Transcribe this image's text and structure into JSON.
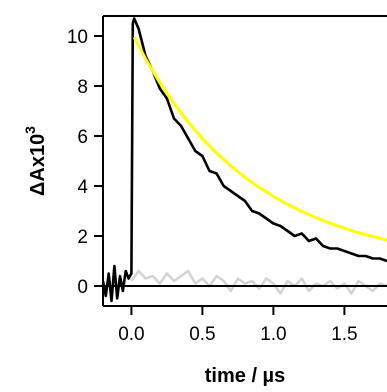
{
  "chart_data": {
    "type": "line",
    "title": "",
    "xlabel": "time / µs",
    "ylabel_main": "ΔAx10",
    "ylabel_exponent": "3",
    "xlim": [
      -0.2,
      1.8
    ],
    "ylim": [
      -0.8,
      10.8
    ],
    "x_ticks": [
      0.0,
      0.5,
      1.0,
      1.5
    ],
    "x_tick_labels": [
      "0.0",
      "0.5",
      "1.0",
      "1.5"
    ],
    "y_ticks": [
      0,
      2,
      4,
      6,
      8,
      10
    ],
    "y_tick_labels": [
      "0",
      "2",
      "4",
      "6",
      "8",
      "10"
    ],
    "grid": false,
    "legend": "none",
    "zero_line": true,
    "series": [
      {
        "role": "background-trace",
        "color": "#d3d3d3",
        "x": [
          0.0,
          0.05,
          0.1,
          0.15,
          0.2,
          0.25,
          0.3,
          0.35,
          0.4,
          0.45,
          0.5,
          0.55,
          0.6,
          0.65,
          0.7,
          0.75,
          0.8,
          0.85,
          0.9,
          0.95,
          1.0,
          1.05,
          1.1,
          1.15,
          1.2,
          1.25,
          1.3,
          1.35,
          1.4,
          1.45,
          1.5,
          1.55,
          1.6,
          1.65,
          1.7,
          1.75,
          1.8
        ],
        "y": [
          0.2,
          0.6,
          0.3,
          0.4,
          0.1,
          0.5,
          0.2,
          0.4,
          0.6,
          0.1,
          0.3,
          0.0,
          0.4,
          0.2,
          -0.2,
          0.3,
          0.1,
          0.2,
          -0.1,
          0.3,
          0.1,
          -0.3,
          0.2,
          0.0,
          0.3,
          -0.2,
          0.1,
          0.0,
          0.2,
          -0.1,
          0.1,
          -0.3,
          0.2,
          0.0,
          -0.2,
          0.1,
          0.0
        ]
      },
      {
        "role": "signal-trace",
        "color": "#000000",
        "x": [
          -0.2,
          -0.18,
          -0.16,
          -0.14,
          -0.12,
          -0.1,
          -0.08,
          -0.06,
          -0.04,
          -0.02,
          0.0,
          0.01,
          0.02,
          0.05,
          0.1,
          0.15,
          0.2,
          0.25,
          0.3,
          0.35,
          0.4,
          0.45,
          0.5,
          0.55,
          0.6,
          0.65,
          0.7,
          0.75,
          0.8,
          0.85,
          0.9,
          0.95,
          1.0,
          1.05,
          1.1,
          1.15,
          1.2,
          1.25,
          1.3,
          1.35,
          1.4,
          1.45,
          1.5,
          1.55,
          1.6,
          1.65,
          1.7,
          1.75,
          1.8
        ],
        "y": [
          0.2,
          -0.4,
          0.5,
          -0.6,
          0.8,
          -0.5,
          0.4,
          -0.2,
          0.6,
          0.3,
          0.5,
          10.5,
          10.7,
          10.3,
          9.2,
          8.6,
          7.9,
          7.5,
          6.7,
          6.4,
          5.9,
          5.4,
          5.2,
          4.6,
          4.5,
          4.0,
          3.8,
          3.6,
          3.4,
          3.0,
          2.9,
          2.7,
          2.5,
          2.4,
          2.2,
          2.0,
          2.1,
          1.8,
          1.9,
          1.6,
          1.5,
          1.5,
          1.4,
          1.3,
          1.2,
          1.2,
          1.1,
          1.1,
          1.0
        ]
      },
      {
        "role": "exponential-fit",
        "color": "#ffff00",
        "x": [
          0.02,
          0.1,
          0.2,
          0.3,
          0.4,
          0.5,
          0.6,
          0.7,
          0.8,
          0.9,
          1.0,
          1.1,
          1.2,
          1.3,
          1.4,
          1.5,
          1.6,
          1.7,
          1.8
        ],
        "y": [
          9.95,
          9.08,
          8.13,
          7.29,
          6.55,
          5.89,
          5.31,
          4.8,
          4.34,
          3.94,
          3.58,
          3.26,
          2.98,
          2.73,
          2.51,
          2.31,
          2.13,
          1.98,
          1.84
        ]
      }
    ]
  }
}
